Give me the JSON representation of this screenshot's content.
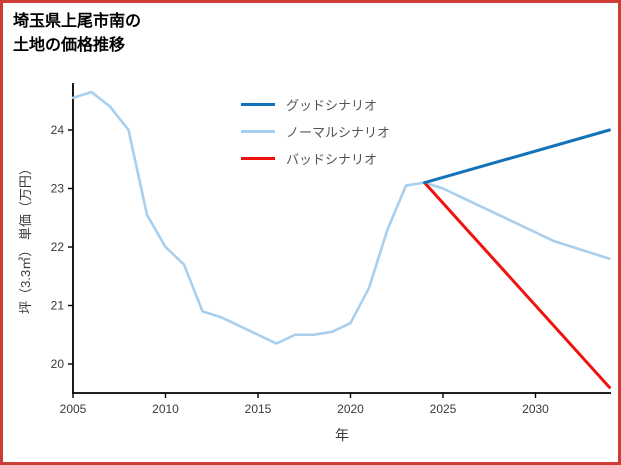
{
  "frame": {
    "border_color": "#cd3d33",
    "background": "#ffffff"
  },
  "title": {
    "line1": "埼玉県上尾市南の",
    "line2": "土地の価格推移"
  },
  "chart_data": {
    "type": "line",
    "title": "埼玉県上尾市南の土地の価格推移",
    "xlabel": "年",
    "ylabel": "坪（3.3㎡） 単価（万円）",
    "x_range": [
      2004.6,
      2034.3
    ],
    "y_range": [
      19.45,
      24.85
    ],
    "xticks": [
      2005,
      2010,
      2015,
      2020,
      2025,
      2030
    ],
    "yticks": [
      20,
      21,
      22,
      23,
      24
    ],
    "grid": false,
    "legend_position": "top-center",
    "axis_color": "#000000",
    "tick_label_color": "#3a3a3a",
    "series": [
      {
        "name": "グッドシナリオ",
        "color": "#1472b8",
        "x": [
          2024,
          2034
        ],
        "values": [
          23.1,
          24.0
        ]
      },
      {
        "name": "ノーマルシナリオ",
        "color": "#a9cfee",
        "x": [
          2005,
          2006,
          2007,
          2008,
          2009,
          2010,
          2011,
          2012,
          2013,
          2014,
          2015,
          2016,
          2017,
          2018,
          2019,
          2020,
          2021,
          2022,
          2023,
          2024,
          2025,
          2026,
          2027,
          2028,
          2029,
          2030,
          2031,
          2032,
          2033,
          2034
        ],
        "values": [
          24.55,
          24.65,
          24.4,
          24.0,
          22.55,
          22.0,
          21.7,
          20.9,
          20.8,
          20.65,
          20.5,
          20.35,
          20.5,
          20.5,
          20.55,
          20.7,
          21.3,
          22.3,
          23.05,
          23.1,
          23.0,
          22.85,
          22.7,
          22.55,
          22.4,
          22.25,
          22.1,
          22.0,
          21.9,
          21.8
        ]
      },
      {
        "name": "バッドシナリオ",
        "color": "#ef1310",
        "x": [
          2024,
          2034
        ],
        "values": [
          23.1,
          19.6
        ]
      }
    ]
  }
}
